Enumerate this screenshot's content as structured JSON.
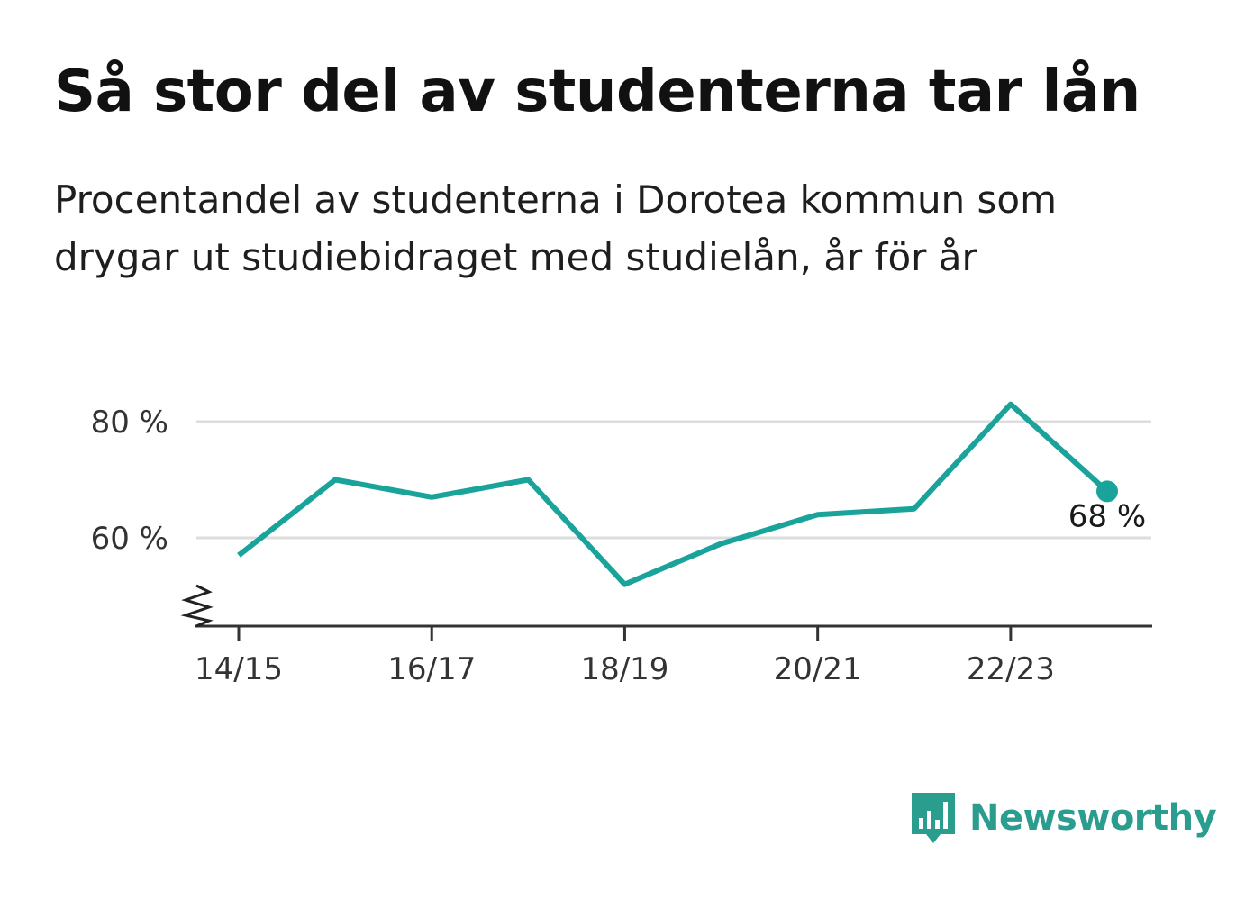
{
  "title": "Så stor del av studenterna tar lån",
  "subtitle": "Procentandel av studenterna i Dorotea kommun som drygar ut studiebidraget med studielån, år för år",
  "brand": {
    "name": "Newsworthy",
    "icon": "bar-chart-speech-bubble-icon",
    "color": "#2a9d8f"
  },
  "chart_data": {
    "type": "line",
    "x": [
      "14/15",
      "15/16",
      "16/17",
      "17/18",
      "18/19",
      "19/20",
      "20/21",
      "21/22",
      "22/23",
      "23/24"
    ],
    "series": [
      {
        "values": [
          57,
          70,
          67,
          70,
          52,
          59,
          64,
          65,
          83,
          68
        ],
        "color": "#1aa39a"
      }
    ],
    "x_tick_labels": [
      "14/15",
      "16/17",
      "18/19",
      "20/21",
      "22/23"
    ],
    "y_ticks": [
      60,
      80
    ],
    "y_tick_labels": [
      "60 %",
      "80 %"
    ],
    "ylim": [
      45,
      85
    ],
    "y_axis_break": true,
    "grid": "horizontal",
    "end_label": "68 %",
    "xlabel": "",
    "ylabel": ""
  }
}
